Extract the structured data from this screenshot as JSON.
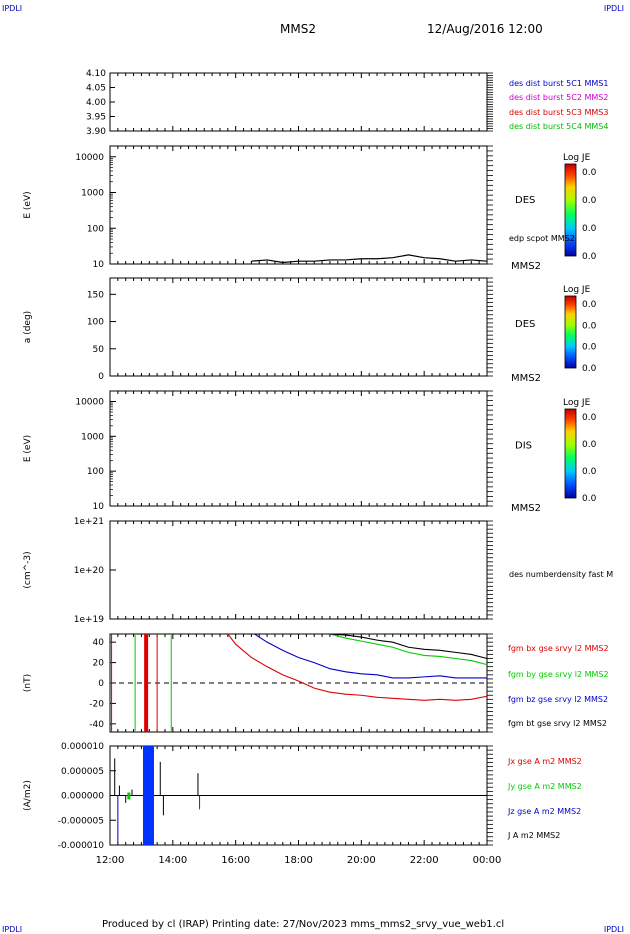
{
  "corner_label": "IPDLI",
  "header": {
    "spacecraft": "MMS2",
    "datetime": "12/Aug/2016 12:00"
  },
  "footer": {
    "text": "Produced by cl (IRAP)   Printing date: 27/Nov/2023   mms_mms2_srvy_vue_web1.cl"
  },
  "colorbar_title": "Log JE",
  "chart_data": [
    {
      "type": "line",
      "id": "orbit",
      "ylabel": "",
      "yticks": [
        "4.10",
        "4.05",
        "4.00",
        "3.95",
        "3.90"
      ],
      "ylim": [
        3.9,
        4.1
      ],
      "legend": [
        {
          "name": "des dist burst 5C1 MMS1",
          "color": "#0000cc"
        },
        {
          "name": "des dist burst 5C2 MMS2",
          "color": "#cc00cc"
        },
        {
          "name": "des dist burst 5C3 MMS3",
          "color": "#dd0000"
        },
        {
          "name": "des dist burst 5C4 MMS4",
          "color": "#00bb00"
        }
      ],
      "series": []
    },
    {
      "type": "heatmap",
      "id": "des_energy",
      "ylabel": "E (eV)",
      "yscale": "log",
      "yticks": [
        "10000",
        "1000",
        "100",
        "10"
      ],
      "ylim": [
        10,
        20000
      ],
      "species": "DES",
      "spacecraft": "MMS2",
      "colorbar": {
        "ticks": [
          "0.0",
          "0.0",
          "0.0",
          "0.0"
        ]
      },
      "overlay": {
        "name": "edp scpot MMS2",
        "color": "#000000",
        "x_hours": [
          16.5,
          17.0,
          17.5,
          18.0,
          18.5,
          19.0,
          19.5,
          20.0,
          20.5,
          21.0,
          21.5,
          22.0,
          22.5,
          23.0,
          23.5,
          24.0
        ],
        "y": [
          12,
          13,
          11,
          12,
          12,
          13,
          13,
          14,
          14,
          15,
          18,
          15,
          14,
          12,
          13,
          12
        ]
      }
    },
    {
      "type": "heatmap",
      "id": "des_pitch",
      "ylabel": "a (deg)",
      "yticks": [
        "150",
        "100",
        "50",
        "0"
      ],
      "ylim": [
        0,
        180
      ],
      "species": "DES",
      "spacecraft": "MMS2",
      "colorbar": {
        "ticks": [
          "0.0",
          "0.0",
          "0.0",
          "0.0"
        ]
      }
    },
    {
      "type": "heatmap",
      "id": "dis_energy",
      "ylabel": "E (eV)",
      "yscale": "log",
      "yticks": [
        "10000",
        "1000",
        "100",
        "10"
      ],
      "ylim": [
        10,
        20000
      ],
      "species": "DIS",
      "spacecraft": "MMS2",
      "colorbar": {
        "ticks": [
          "0.0",
          "0.0",
          "0.0",
          "0.0"
        ]
      }
    },
    {
      "type": "line",
      "id": "density",
      "ylabel": "(cm^-3)",
      "yscale": "log",
      "yticks": [
        "1e+21",
        "1e+20",
        "1e+19"
      ],
      "ylim": [
        1e+19,
        1e+21
      ],
      "legend": [
        {
          "name": "des numberdensity fast M",
          "color": "#000000"
        }
      ],
      "series": []
    },
    {
      "type": "line",
      "id": "fgm",
      "ylabel": "(nT)",
      "yticks": [
        "40",
        "20",
        "0",
        "-20",
        "-40"
      ],
      "ylim": [
        -48,
        48
      ],
      "legend": [
        {
          "name": "fgm bx gse srvy l2 MMS2",
          "color": "#dd0000"
        },
        {
          "name": "fgm by gse srvy l2 MMS2",
          "color": "#00cc00"
        },
        {
          "name": "fgm bz gse srvy l2 MMS2",
          "color": "#0000cc"
        },
        {
          "name": "fgm bt gse srvy l2 MMS2",
          "color": "#000000"
        }
      ],
      "series": [
        {
          "color": "#dd0000",
          "x_hours": [
            15.75,
            16.0,
            16.5,
            17.0,
            17.5,
            18.0,
            18.5,
            19.0,
            19.5,
            20.0,
            20.5,
            21.0,
            21.5,
            22.0,
            22.5,
            23.0,
            23.5,
            24.0
          ],
          "y": [
            48,
            38,
            25,
            16,
            8,
            2,
            -5,
            -9,
            -11,
            -12,
            -14,
            -15,
            -16,
            -17,
            -16,
            -17,
            -16,
            -13
          ]
        },
        {
          "color": "#00cc00",
          "x_hours": [
            19.0,
            19.5,
            20.0,
            20.5,
            21.0,
            21.5,
            22.0,
            22.5,
            23.0,
            23.5,
            24.0
          ],
          "y": [
            48,
            44,
            41,
            38,
            35,
            30,
            27,
            26,
            24,
            22,
            18
          ]
        },
        {
          "color": "#0000cc",
          "x_hours": [
            16.6,
            17.0,
            17.5,
            18.0,
            18.5,
            19.0,
            19.5,
            20.0,
            20.5,
            21.0,
            21.5,
            22.0,
            22.5,
            23.0,
            23.5,
            24.0
          ],
          "y": [
            48,
            40,
            32,
            25,
            20,
            14,
            11,
            9,
            8,
            5,
            5,
            6,
            7,
            5,
            5,
            5
          ]
        },
        {
          "color": "#000000",
          "x_hours": [
            19.0,
            19.5,
            20.0,
            20.5,
            21.0,
            21.5,
            22.0,
            22.5,
            23.0,
            23.5,
            24.0
          ],
          "y": [
            48,
            47,
            45,
            42,
            40,
            35,
            33,
            32,
            30,
            28,
            24
          ]
        }
      ],
      "vertical_markers": [
        {
          "x_hours": 12.05,
          "color": "#dd0000",
          "width": 1
        },
        {
          "x_hours": 12.8,
          "color": "#00cc00",
          "width": 1
        },
        {
          "x_hours": 13.15,
          "color": "#dd0000",
          "width": 4
        },
        {
          "x_hours": 13.5,
          "color": "#dd0000",
          "width": 1
        },
        {
          "x_hours": 13.95,
          "color": "#00cc00",
          "width": 1
        }
      ]
    },
    {
      "type": "line",
      "id": "current",
      "ylabel": "(A/m2)",
      "yticks": [
        "0.000010",
        "0.000005",
        "0.000000",
        "-0.000005",
        "-0.000010"
      ],
      "ylim": [
        -1e-05,
        1e-05
      ],
      "xticks": [
        "12:00",
        "14:00",
        "16:00",
        "18:00",
        "20:00",
        "22:00",
        "00:00"
      ],
      "legend": [
        {
          "name": "Jx gse A m2 MMS2",
          "color": "#dd0000"
        },
        {
          "name": "Jy gse A m2 MMS2",
          "color": "#00cc00"
        },
        {
          "name": "Jz gse A m2 MMS2",
          "color": "#0000cc"
        },
        {
          "name": "J A m2 MMS2",
          "color": "#000000"
        }
      ]
    }
  ]
}
